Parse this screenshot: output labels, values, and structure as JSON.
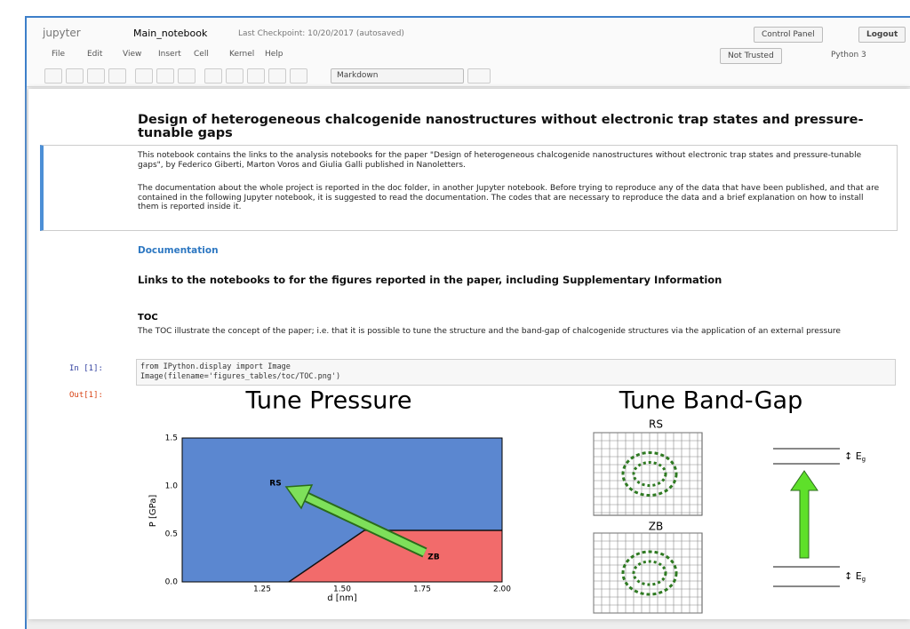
{
  "header": {
    "logo": "jupyter",
    "notebook_name": "Main_notebook",
    "checkpoint": "Last Checkpoint: 10/20/2017 (autosaved)",
    "control_panel": "Control Panel",
    "logout": "Logout",
    "not_trusted": "Not Trusted",
    "kernel": "Python 3"
  },
  "menu": [
    "File",
    "Edit",
    "View",
    "Insert",
    "Cell",
    "Kernel",
    "Help"
  ],
  "toolbar": {
    "cell_type": "Markdown"
  },
  "cells": {
    "title": "Design of heterogeneous chalcogenide nanostructures without electronic trap states and pressure-tunable gaps",
    "intro": "This notebook contains the links to the analysis notebooks for the paper \"Design of heterogeneous chalcogenide nanostructures without electronic trap states and pressure-tunable gaps\", by Federico Giberti, Marton Voros and Giulia Galli published in Nanoletters.",
    "doc_note": "The documentation about the whole project is reported in the doc folder, in another Jupyter notebook. Before trying to reproduce any of the data that have been published, and that are contained in the following Jupyter notebook, it is suggested to read the documentation. The codes that are necessary to reproduce the data and a brief explanation on how to install them is reported inside it.",
    "documentation": "Documentation",
    "links_heading": "Links to the notebooks to for the figures reported in the paper, including Supplementary Information",
    "toc_heading": "TOC",
    "toc_text": "The TOC illustrate the concept of the paper; i.e. that it is possible to tune the structure and the band-gap of chalcogenide structures via the application of an external pressure",
    "in_prompt": "In [1]:",
    "code": [
      "from IPython.display import Image",
      "Image(filename='figures_tables/toc/TOC.png')"
    ],
    "out_prompt": "Out[1]:"
  },
  "figure": {
    "left_title": "Tune Pressure",
    "yticks": [
      "0.0",
      "0.5",
      "1.0",
      "1.5"
    ],
    "xticks": [
      "1.25",
      "1.50",
      "1.75",
      "2.00"
    ],
    "xlabel": "d [nm]",
    "ylabel": "P [GPa]",
    "label_rs": "RS",
    "label_zb": "ZB",
    "right_title": "Tune Band-Gap",
    "grid_rs": "RS",
    "grid_zb": "ZB",
    "gap_top": {
      "symbol": "E",
      "subscript": "g"
    },
    "gap_bottom": {
      "symbol": "E",
      "subscript": "g"
    }
  }
}
